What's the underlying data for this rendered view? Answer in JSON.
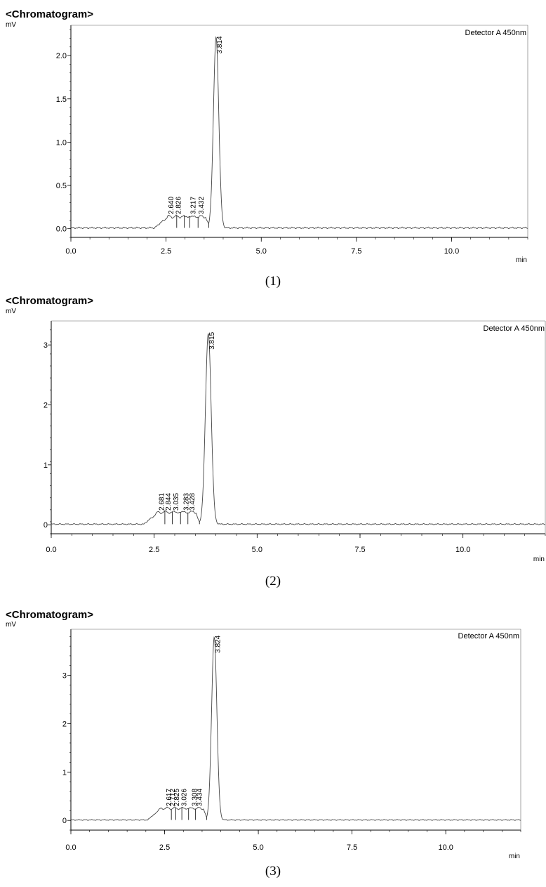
{
  "chart_data": [
    {
      "type": "line",
      "title": "<Chromatogram>",
      "ylabel": "mV",
      "xlabel": "min",
      "legend": "Detector A 450nm",
      "caption": "(1)",
      "xlim": [
        0,
        12
      ],
      "ylim": [
        -0.1,
        2.35
      ],
      "xticks": [
        0.0,
        2.5,
        5.0,
        7.5,
        10.0
      ],
      "xtick_labels": [
        "0.0",
        "2.5",
        "5.0",
        "7.5",
        "10.0"
      ],
      "yticks": [
        0.0,
        0.5,
        1.0,
        1.5,
        2.0
      ],
      "ytick_labels": [
        "0.0",
        "0.5",
        "1.0",
        "1.5",
        "2.0"
      ],
      "baseline": 0.01,
      "hump": {
        "start": 2.2,
        "end": 3.62,
        "level": 0.13
      },
      "main_peak": {
        "rt": 3.814,
        "height": 2.2,
        "width": 0.07
      },
      "peaks": [
        {
          "label": "2.640",
          "rt": 2.64
        },
        {
          "label": "2.826",
          "rt": 2.826
        },
        {
          "label": "3.217",
          "rt": 3.217
        },
        {
          "label": "3.432",
          "rt": 3.432
        },
        {
          "label": "3.814",
          "rt": 3.814
        }
      ],
      "drop_lines": [
        2.78,
        2.98,
        3.12,
        3.34,
        3.62
      ]
    },
    {
      "type": "line",
      "title": "<Chromatogram>",
      "ylabel": "mV",
      "xlabel": "min",
      "legend": "Detector A 450nm",
      "caption": "(2)",
      "xlim": [
        0,
        12
      ],
      "ylim": [
        -0.15,
        3.4
      ],
      "xticks": [
        0.0,
        2.5,
        5.0,
        7.5,
        10.0
      ],
      "xtick_labels": [
        "0.0",
        "2.5",
        "5.0",
        "7.5",
        "10.0"
      ],
      "yticks": [
        0,
        1,
        2,
        3
      ],
      "ytick_labels": [
        "0",
        "1",
        "2",
        "3"
      ],
      "baseline": 0.01,
      "hump": {
        "start": 2.25,
        "end": 3.6,
        "level": 0.2
      },
      "main_peak": {
        "rt": 3.815,
        "height": 3.18,
        "width": 0.07
      },
      "peaks": [
        {
          "label": "2.681",
          "rt": 2.681
        },
        {
          "label": "2.844",
          "rt": 2.844
        },
        {
          "label": "3.035",
          "rt": 3.035
        },
        {
          "label": "3.283",
          "rt": 3.283
        },
        {
          "label": "3.428",
          "rt": 3.428
        },
        {
          "label": "3.815",
          "rt": 3.815
        }
      ],
      "drop_lines": [
        2.76,
        2.94,
        3.14,
        3.32,
        3.6
      ]
    },
    {
      "type": "line",
      "title": "<Chromatogram>",
      "ylabel": "mV",
      "xlabel": "min",
      "legend": "Detector A 450nm",
      "caption": "(3)",
      "xlim": [
        0,
        12
      ],
      "ylim": [
        -0.2,
        3.95
      ],
      "xticks": [
        0.0,
        2.5,
        5.0,
        7.5,
        10.0
      ],
      "xtick_labels": [
        "0.0",
        "2.5",
        "5.0",
        "7.5",
        "10.0"
      ],
      "yticks": [
        0,
        1,
        2,
        3
      ],
      "ytick_labels": [
        "0",
        "1",
        "2",
        "3"
      ],
      "baseline": 0.01,
      "hump": {
        "start": 2.05,
        "end": 3.62,
        "level": 0.24
      },
      "main_peak": {
        "rt": 3.824,
        "height": 3.78,
        "width": 0.07
      },
      "peaks": [
        {
          "label": "2.617",
          "rt": 2.617
        },
        {
          "label": "2.712",
          "rt": 2.712
        },
        {
          "label": "2.825",
          "rt": 2.825
        },
        {
          "label": "3.026",
          "rt": 3.026
        },
        {
          "label": "3.308",
          "rt": 3.308
        },
        {
          "label": "3.434",
          "rt": 3.434
        },
        {
          "label": "3.824",
          "rt": 3.824
        }
      ],
      "drop_lines": [
        2.68,
        2.8,
        2.96,
        3.14,
        3.32,
        3.62
      ]
    }
  ]
}
